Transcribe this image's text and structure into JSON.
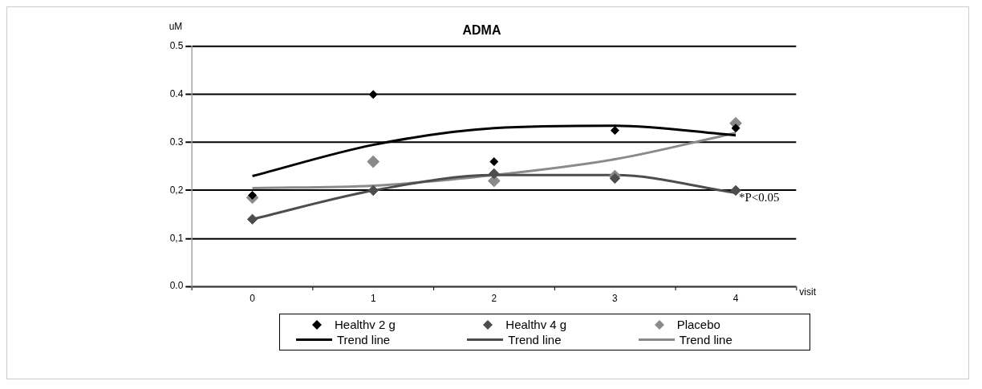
{
  "chart_data": {
    "type": "scatter",
    "title": "ADMA",
    "xlabel": "visit",
    "ylabel": "uM",
    "categories": [
      "0",
      "1",
      "2",
      "3",
      "4"
    ],
    "series": [
      {
        "name": "Healthv 2 g",
        "color": "#000000",
        "values": [
          0.19,
          0.4,
          0.26,
          0.325,
          0.33
        ]
      },
      {
        "name": "Healthv 4 g",
        "color": "#4d4d4d",
        "values": [
          0.14,
          0.2,
          0.235,
          0.225,
          0.2
        ]
      },
      {
        "name": "Placebo",
        "color": "#8a8a8a",
        "values": [
          0.185,
          0.26,
          0.22,
          0.23,
          0.34
        ]
      },
      {
        "name": "Trend line",
        "type": "line",
        "marker": "none",
        "color": "#000000",
        "values": [
          0.23,
          0.295,
          0.33,
          0.335,
          0.315
        ]
      },
      {
        "name": "Trend line",
        "type": "line",
        "marker": "none",
        "color": "#4d4d4d",
        "values": [
          0.14,
          0.2,
          0.232,
          0.232,
          0.195
        ]
      },
      {
        "name": "Trend line",
        "type": "line",
        "marker": "none",
        "color": "#8a8a8a",
        "values": [
          0.205,
          0.21,
          0.232,
          0.265,
          0.32
        ]
      }
    ],
    "ylim": [
      0,
      0.5
    ],
    "yticks": [
      {
        "value": 0,
        "label": "0.0"
      },
      {
        "value": 0.1,
        "label": "0,1"
      },
      {
        "value": 0.2,
        "label": "0,2"
      },
      {
        "value": 0.3,
        "label": "0.3"
      },
      {
        "value": 0.4,
        "label": "0.4"
      },
      {
        "value": 0.5,
        "label": "0.5"
      }
    ],
    "grid": "y",
    "legend": "bottom",
    "marker": "diamond",
    "line_style": "solid",
    "annotations": [
      {
        "text": "*P<0.05",
        "x": "4",
        "y": 0.2
      }
    ]
  }
}
